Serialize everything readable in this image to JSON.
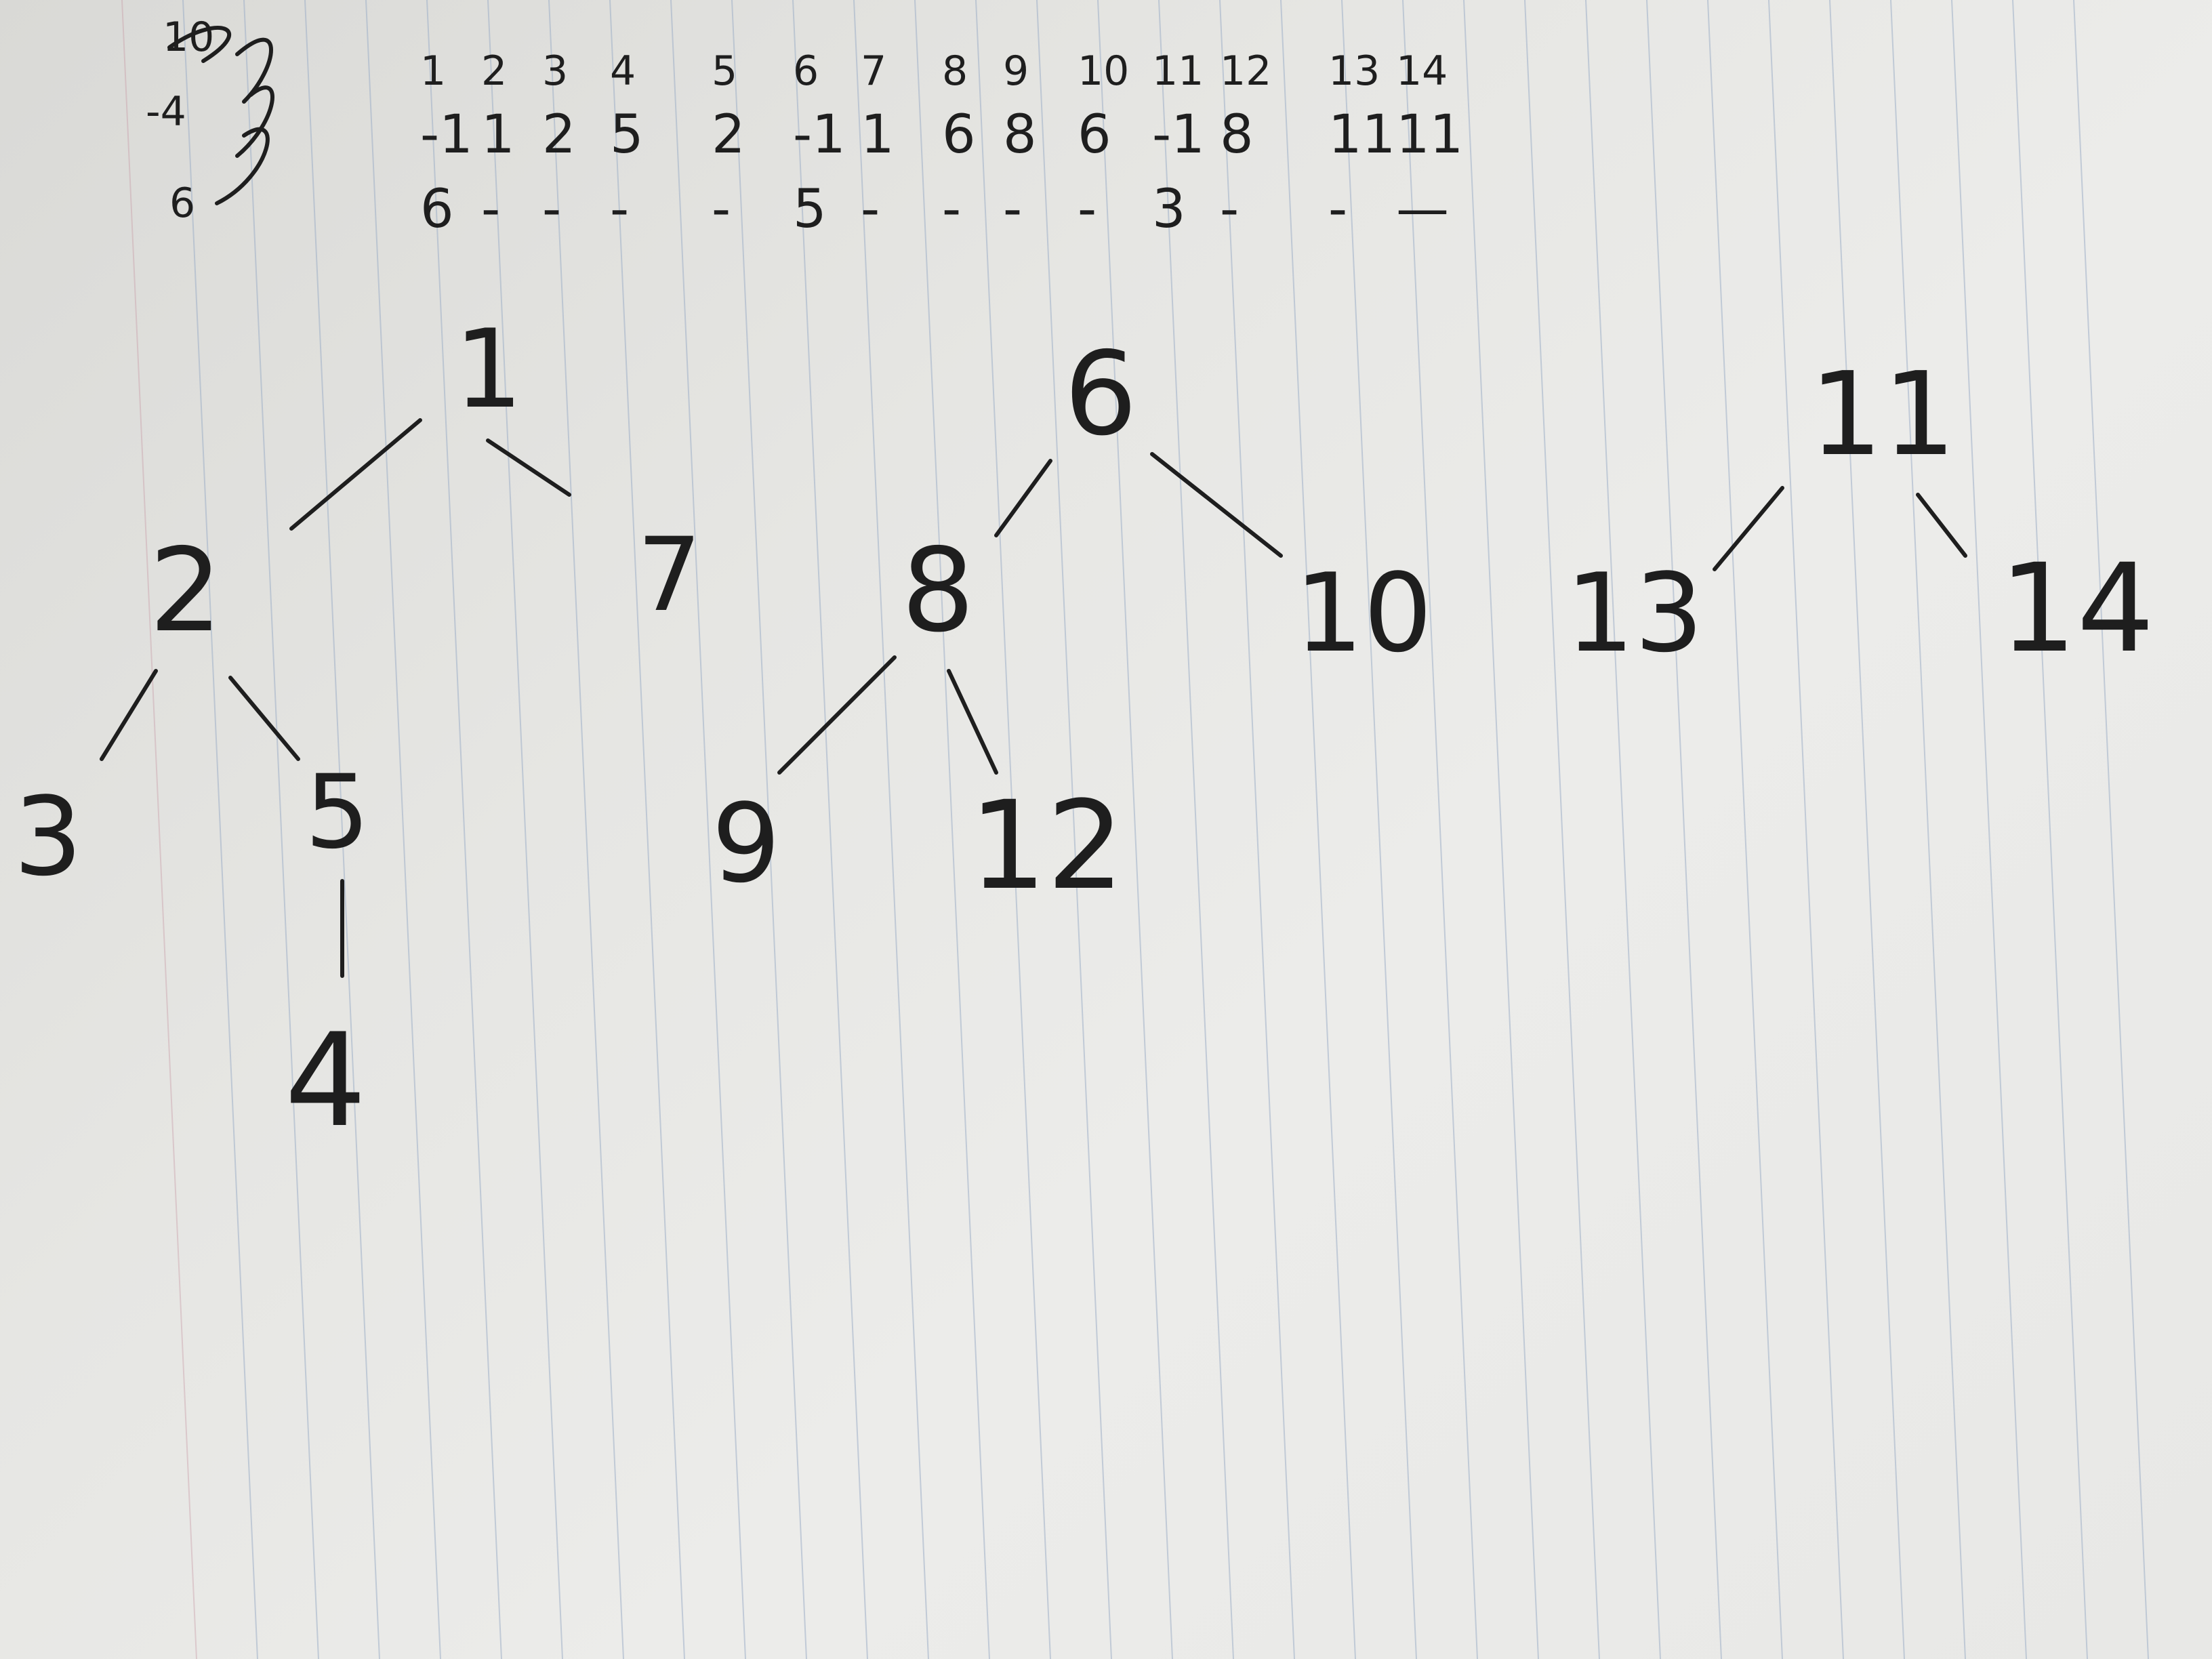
{
  "paper": {
    "background": "#e8e8e6",
    "rule_color": "#9fb0c8",
    "ink_color": "#1e1e1e",
    "orientation": "vertical ruled lines",
    "margin_header_marks": [
      "10",
      "-4",
      "6"
    ]
  },
  "array_table": {
    "index_row": [
      "1",
      "2",
      "3",
      "4",
      "5",
      "6",
      "7",
      "8",
      "9",
      "10",
      "11",
      "12",
      "13",
      "14"
    ],
    "parent_row": [
      "-1",
      "1",
      "2",
      "5",
      "2",
      "-1",
      "1",
      "6",
      "8",
      "6",
      "-1",
      "8",
      "11",
      "11"
    ],
    "size_row": [
      "6",
      "-",
      "-",
      "-",
      "-",
      "5",
      "-",
      "-",
      "-",
      "-",
      "3",
      "-",
      "-",
      "—"
    ]
  },
  "trees": {
    "tree1": {
      "root": "1",
      "children_of_root": [
        "2",
        "7"
      ],
      "children_of_2": [
        "3",
        "5"
      ],
      "child_of_5": "4"
    },
    "tree2": {
      "root": "6",
      "children_of_root": [
        "8",
        "10"
      ],
      "children_of_8": [
        "9",
        "12"
      ]
    },
    "tree3": {
      "root": "11",
      "children_of_root": [
        "13",
        "14"
      ]
    }
  }
}
